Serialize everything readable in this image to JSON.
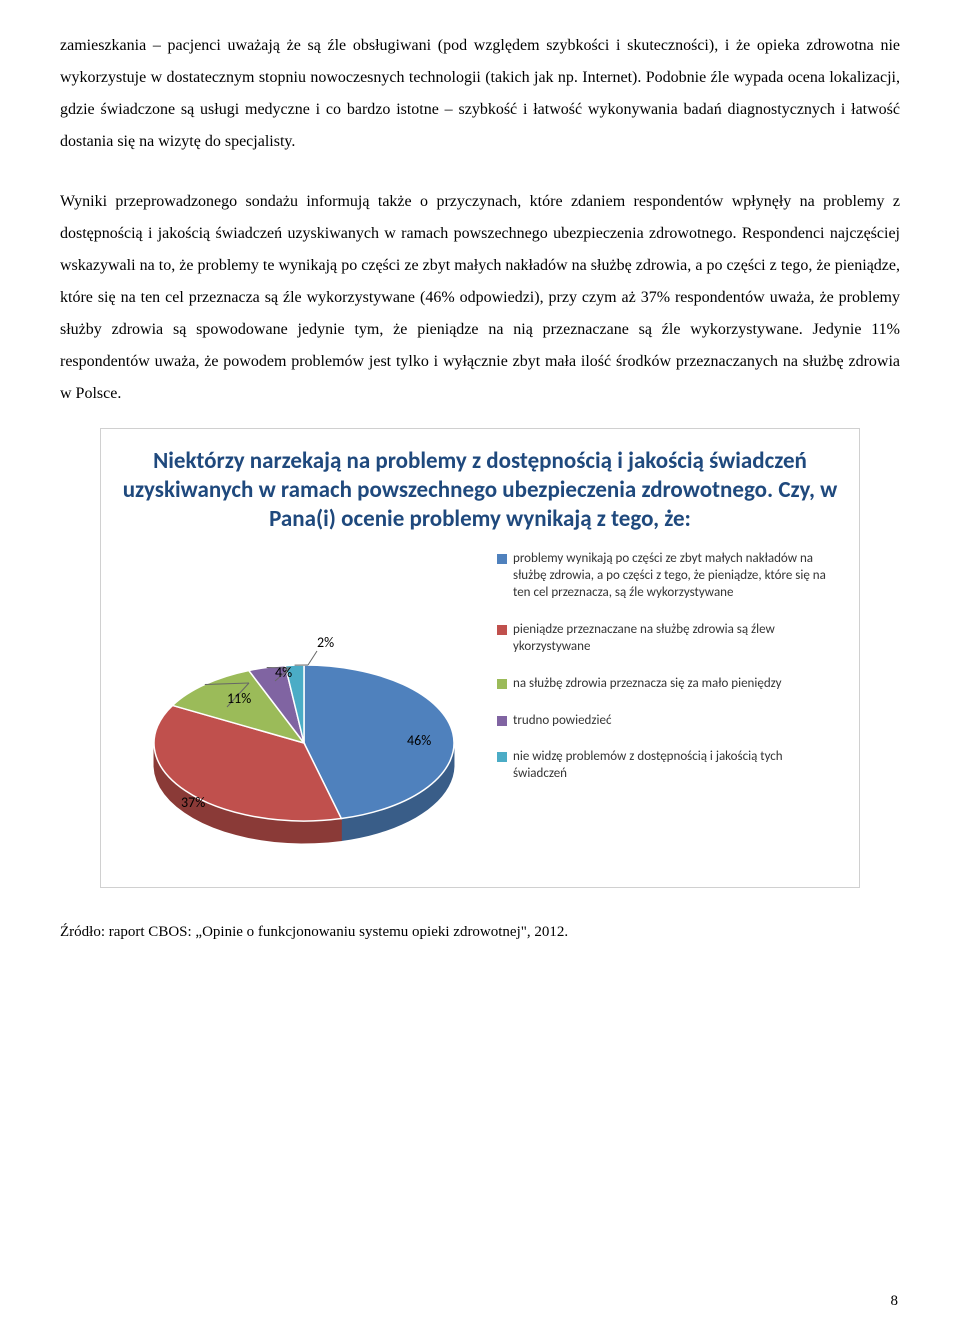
{
  "paragraph1": "zamieszkania – pacjenci uważają że są źle obsługiwani (pod względem szybkości i skuteczności), i że opieka zdrowotna nie wykorzystuje w dostatecznym stopniu nowoczesnych technologii (takich jak np. Internet). Podobnie źle wypada ocena lokalizacji, gdzie świadczone są usługi medyczne i co bardzo istotne – szybkość i łatwość wykonywania badań diagnostycznych i łatwość dostania się na wizytę do specjalisty.",
  "paragraph2": "Wyniki przeprowadzonego sondażu informują także o przyczynach, które zdaniem respondentów wpłynęły na problemy z dostępnością i jakością świadczeń uzyskiwanych w ramach powszechnego ubezpieczenia zdrowotnego. Respondenci najczęściej wskazywali na to, że problemy te wynikają po części ze zbyt małych nakładów na służbę zdrowia, a po części z tego, że pieniądze, które się na ten cel przeznacza są źle wykorzystywane (46% odpowiedzi), przy czym aż 37% respondentów uważa, że problemy służby zdrowia są spowodowane jedynie tym, że pieniądze na nią przeznaczane są źle wykorzystywane. Jedynie 11% respondentów uważa, że powodem problemów jest tylko i wyłącznie zbyt mała ilość środków przeznaczanych na służbę zdrowia w Polsce.",
  "chart": {
    "title": "Niektórzy narzekają na problemy z dostępnością i jakością świadczeń uzyskiwanych w ramach powszechnego ubezpieczenia zdrowotnego. Czy, w Pana(i) ocenie problemy wynikają z tego, że:",
    "title_color": "#1f497d",
    "title_fontsize": 23,
    "slices": [
      {
        "label": "46%",
        "value": 46,
        "color": "#4f81bd"
      },
      {
        "label": "37%",
        "value": 37,
        "color": "#c0504d"
      },
      {
        "label": "11%",
        "value": 11,
        "color": "#9bbb59"
      },
      {
        "label": "4%",
        "value": 4,
        "color": "#8064a2"
      },
      {
        "label": "2%",
        "value": 2,
        "color": "#4bacc6"
      }
    ],
    "side_darken": 0.72,
    "legend": [
      {
        "color": "#4f81bd",
        "text": "problemy wynikają po części ze zbyt małych nakładów na służbę zdrowia, a po części z tego, że pieniądze, które się na ten cel przeznacza, są źle wykorzystywane"
      },
      {
        "color": "#c0504d",
        "text": "pieniądze przeznaczane na służbę zdrowia są źlew ykorzystywane"
      },
      {
        "color": "#9bbb59",
        "text": "na służbę zdrowia przeznacza się za mało pieniędzy"
      },
      {
        "color": "#8064a2",
        "text": "trudno powiedzieć"
      },
      {
        "color": "#4bacc6",
        "text": "nie widzę problemów z dostępnością i jakością tych świadczeń"
      }
    ],
    "label_fontsize": 13,
    "label_color": "#333333",
    "background_color": "#ffffff",
    "pie_label_color": "#000000",
    "pie_label_fontsize": 14
  },
  "footnote": "Źródło: raport CBOS: „Opinie o funkcjonowaniu systemu opieki zdrowotnej\", 2012.",
  "page_number": "8"
}
